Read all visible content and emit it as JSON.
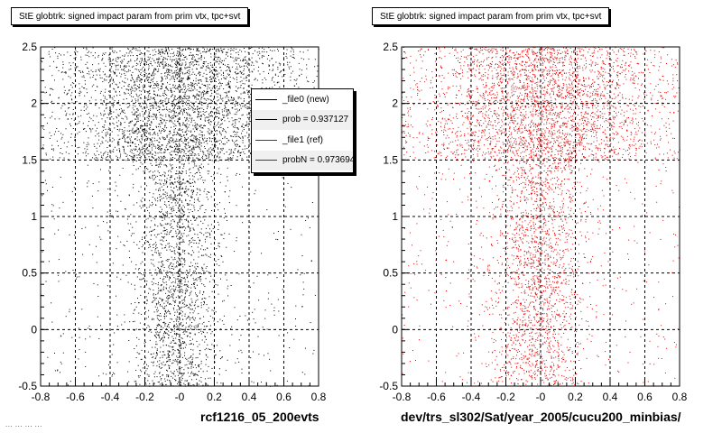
{
  "panels": [
    {
      "title": "StE globtrk: signed impact param from prim vtx, tpc+svt",
      "xlabel": "rcf1216_05_200evts",
      "marker_color": "#000000"
    },
    {
      "title": "StE globtrk: signed impact param from prim vtx, tpc+svt",
      "xlabel": "dev/trs_sl302/Sat/year_2005/cucu200_minbias/",
      "marker_color": "#e00000"
    }
  ],
  "legend": {
    "items": [
      {
        "label": "_file0 (new)",
        "color": "#000000"
      },
      {
        "label": "prob = 0.937127",
        "color": "#000000"
      },
      {
        "label": "_file1 (ref)",
        "color": "#d00000"
      },
      {
        "label": "probN = 0.973694",
        "color": "#d00000"
      }
    ]
  },
  "footer_note": "... ... ... ...",
  "chart_data": [
    {
      "type": "scatter",
      "title": "StE globtrk: signed impact param from prim vtx, tpc+svt",
      "xlabel": "rcf1216_05_200evts",
      "ylabel": "",
      "xlim": [
        -0.8,
        0.8
      ],
      "ylim": [
        -0.5,
        2.5
      ],
      "x_ticks": [
        "-0.8",
        "-0.6",
        "-0.4",
        "-0.2",
        "-0",
        "0.2",
        "0.4",
        "0.6",
        "0.8"
      ],
      "y_ticks": [
        "-0.5",
        "0",
        "0.5",
        "1",
        "1.5",
        "2",
        "2.5"
      ],
      "grid": true,
      "series": [
        {
          "color": "#000000"
        }
      ],
      "density_regions": [
        {
          "x_center": -0.02,
          "x_spread": 0.12,
          "y_range": [
            -0.5,
            1.5
          ],
          "weight": 1.0
        },
        {
          "x_center": 0.0,
          "x_spread": 0.3,
          "y_range": [
            1.5,
            2.5
          ],
          "weight": 1.6
        }
      ]
    },
    {
      "type": "scatter",
      "title": "StE globtrk: signed impact param from prim vtx, tpc+svt",
      "xlabel": "dev/trs_sl302/Sat/year_2005/cucu200_minbias/",
      "ylabel": "",
      "xlim": [
        -0.8,
        0.8
      ],
      "ylim": [
        -0.5,
        2.5
      ],
      "x_ticks": [
        "-0.8",
        "-0.6",
        "-0.4",
        "-0.2",
        "-0",
        "0.2",
        "0.4",
        "0.6",
        "0.8"
      ],
      "y_ticks": [
        "-0.5",
        "0",
        "0.5",
        "1",
        "1.5",
        "2",
        "2.5"
      ],
      "grid": true,
      "series": [
        {
          "color": "#e00000"
        }
      ],
      "density_regions": [
        {
          "x_center": -0.02,
          "x_spread": 0.14,
          "y_range": [
            -0.5,
            1.5
          ],
          "weight": 1.0
        },
        {
          "x_center": 0.0,
          "x_spread": 0.32,
          "y_range": [
            1.5,
            2.5
          ],
          "weight": 1.5
        }
      ]
    }
  ]
}
